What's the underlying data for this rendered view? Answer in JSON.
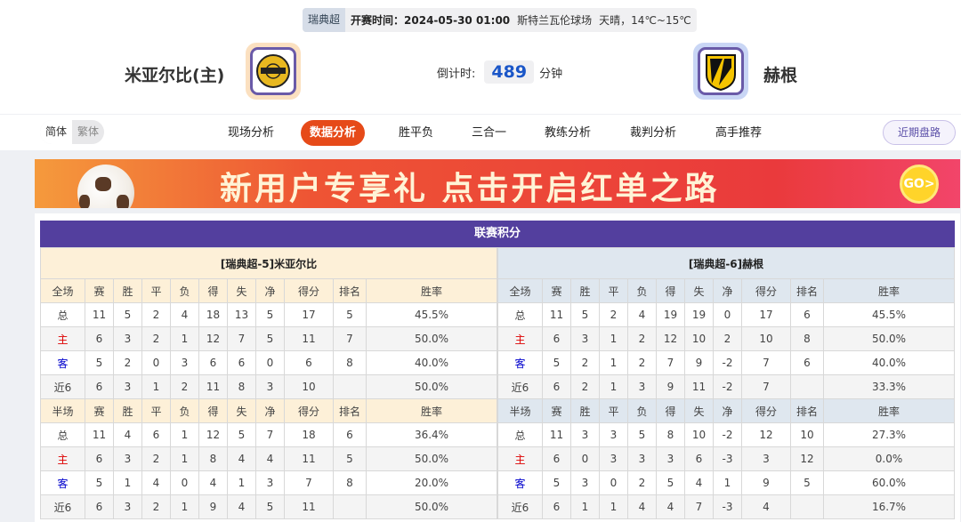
{
  "match": {
    "league": "瑞典超",
    "time_label": "开赛时间：2024-05-30 01:00",
    "venue": "斯特兰瓦伦球场",
    "weather": "天晴，14℃~15℃"
  },
  "home": {
    "name": "米亚尔比(主)",
    "logo": "mjallby-crest"
  },
  "away": {
    "name": "赫根",
    "logo": "hacken-crest"
  },
  "countdown": {
    "label": "倒计时:",
    "value": "489",
    "unit": "分钟"
  },
  "lang": {
    "simplified": "简体",
    "traditional": "繁体"
  },
  "tabs": [
    {
      "label": "现场分析"
    },
    {
      "label": "数据分析",
      "active": true
    },
    {
      "label": "胜平负"
    },
    {
      "label": "三合一"
    },
    {
      "label": "教练分析"
    },
    {
      "label": "裁判分析"
    },
    {
      "label": "高手推荐"
    }
  ],
  "recent_button": "近期盘路",
  "banner": {
    "text": "新用户专享礼  点击开启红单之路",
    "go": "GO>"
  },
  "standings": {
    "title": "联赛积分",
    "columns": [
      "赛",
      "胜",
      "平",
      "负",
      "得",
      "失",
      "净",
      "得分",
      "排名",
      "胜率"
    ],
    "full_label": "全场",
    "half_label": "半场",
    "left": {
      "team": "[瑞典超-5]米亚尔比",
      "full": [
        [
          "总",
          "11",
          "5",
          "2",
          "4",
          "18",
          "13",
          "5",
          "17",
          "5",
          "45.5%"
        ],
        [
          "主",
          "6",
          "3",
          "2",
          "1",
          "12",
          "7",
          "5",
          "11",
          "7",
          "50.0%"
        ],
        [
          "客",
          "5",
          "2",
          "0",
          "3",
          "6",
          "6",
          "0",
          "6",
          "8",
          "40.0%"
        ],
        [
          "近6",
          "6",
          "3",
          "1",
          "2",
          "11",
          "8",
          "3",
          "10",
          "",
          "50.0%"
        ]
      ],
      "half": [
        [
          "总",
          "11",
          "4",
          "6",
          "1",
          "12",
          "5",
          "7",
          "18",
          "6",
          "36.4%"
        ],
        [
          "主",
          "6",
          "3",
          "2",
          "1",
          "8",
          "4",
          "4",
          "11",
          "5",
          "50.0%"
        ],
        [
          "客",
          "5",
          "1",
          "4",
          "0",
          "4",
          "1",
          "3",
          "7",
          "8",
          "20.0%"
        ],
        [
          "近6",
          "6",
          "3",
          "2",
          "1",
          "9",
          "4",
          "5",
          "11",
          "",
          "50.0%"
        ]
      ]
    },
    "right": {
      "team": "[瑞典超-6]赫根",
      "full": [
        [
          "总",
          "11",
          "5",
          "2",
          "4",
          "19",
          "19",
          "0",
          "17",
          "6",
          "45.5%"
        ],
        [
          "主",
          "6",
          "3",
          "1",
          "2",
          "12",
          "10",
          "2",
          "10",
          "8",
          "50.0%"
        ],
        [
          "客",
          "5",
          "2",
          "1",
          "2",
          "7",
          "9",
          "-2",
          "7",
          "6",
          "40.0%"
        ],
        [
          "近6",
          "6",
          "2",
          "1",
          "3",
          "9",
          "11",
          "-2",
          "7",
          "",
          "33.3%"
        ]
      ],
      "half": [
        [
          "总",
          "11",
          "3",
          "3",
          "5",
          "8",
          "10",
          "-2",
          "12",
          "10",
          "27.3%"
        ],
        [
          "主",
          "6",
          "0",
          "3",
          "3",
          "3",
          "6",
          "-3",
          "3",
          "12",
          "0.0%"
        ],
        [
          "客",
          "5",
          "3",
          "0",
          "2",
          "5",
          "4",
          "1",
          "9",
          "5",
          "60.0%"
        ],
        [
          "近6",
          "6",
          "1",
          "1",
          "4",
          "4",
          "7",
          "-3",
          "4",
          "",
          "16.7%"
        ]
      ]
    }
  },
  "colors": {
    "accent": "#e64a19",
    "header": "#533f9e",
    "home_label": "#dd0000",
    "away_label": "#0000cc"
  }
}
